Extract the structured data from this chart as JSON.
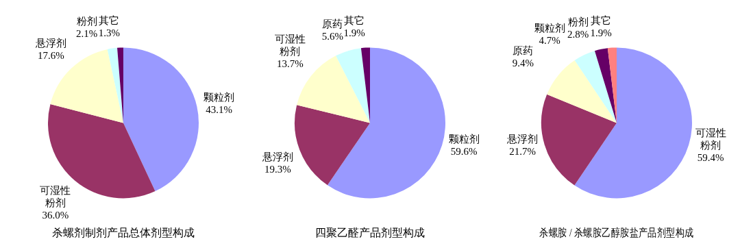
{
  "chart_data": [
    {
      "type": "pie",
      "title": "杀螺剂制剂产品总体剂型构成",
      "categories": [
        "颗粒剂",
        "可湿性粉剂",
        "悬浮剂",
        "粉剂",
        "其它"
      ],
      "values": [
        43.1,
        36.0,
        17.6,
        2.1,
        1.3
      ],
      "value_labels": [
        "43.1%",
        "36.0%",
        "17.6%",
        "2.1%",
        "1.3%"
      ],
      "colors": [
        "#9999ff",
        "#993366",
        "#ffffcc",
        "#ccffff",
        "#660066"
      ],
      "legend": false
    },
    {
      "type": "pie",
      "title": "四聚乙醛产品剂型构成",
      "categories": [
        "颗粒剂",
        "悬浮剂",
        "可湿性粉剂",
        "原药",
        "其它"
      ],
      "values": [
        59.6,
        19.3,
        13.7,
        5.6,
        1.9
      ],
      "value_labels": [
        "59.6%",
        "19.3%",
        "13.7%",
        "5.6%",
        "1.9%"
      ],
      "colors": [
        "#9999ff",
        "#993366",
        "#ffffcc",
        "#ccffff",
        "#660066"
      ],
      "legend": false
    },
    {
      "type": "pie",
      "title": "杀螺胺 / 杀螺胺乙醇胺盐产品剂型构成",
      "categories": [
        "可湿性粉剂",
        "悬浮剂",
        "原药",
        "颗粒剂",
        "粉剂",
        "其它"
      ],
      "values": [
        59.4,
        21.7,
        9.4,
        4.7,
        2.8,
        1.9
      ],
      "value_labels": [
        "59.4%",
        "21.7%",
        "9.4%",
        "4.7%",
        "2.8%",
        "1.9%"
      ],
      "colors": [
        "#9999ff",
        "#993366",
        "#ffffcc",
        "#ccffff",
        "#660066",
        "#ff8080"
      ],
      "legend": false
    }
  ]
}
